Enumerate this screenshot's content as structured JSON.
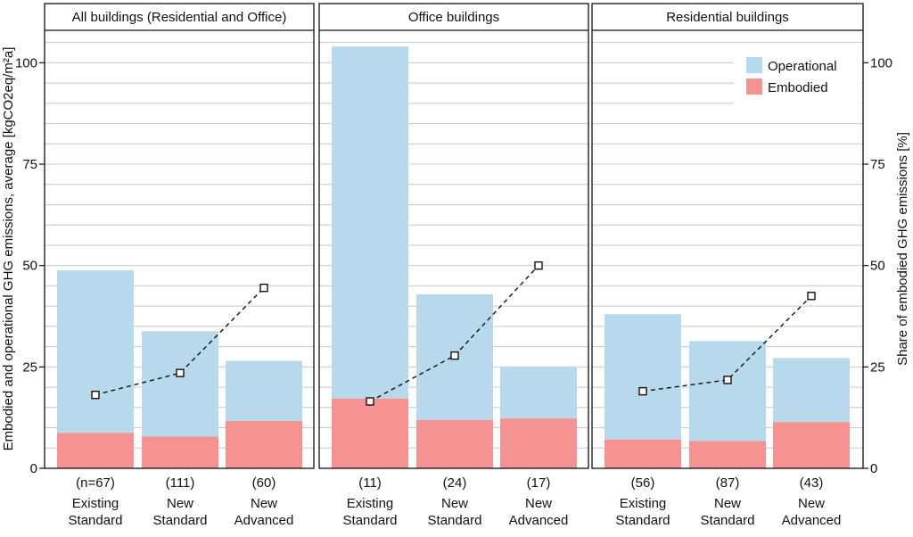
{
  "chart_data": {
    "type": "bar",
    "stacked": true,
    "ylabel_left": "Embodied and operational GHG emissions, average [kgCO2eq/m²a]",
    "ylabel_right": "Share of embodied GHG emissions [%]",
    "ylim_left": [
      0,
      108
    ],
    "ylim_right": [
      0,
      108
    ],
    "yticks": [
      0,
      25,
      50,
      75,
      100
    ],
    "grid": true,
    "legend": {
      "placement": "top-right of last panel",
      "entries": [
        {
          "name": "Operational",
          "color": "#b8d8eb"
        },
        {
          "name": "Embodied",
          "color": "#f59393"
        }
      ]
    },
    "line_series_name": "Share of embodied GHG emissions",
    "panels": [
      {
        "title": "All buildings (Residential and Office)",
        "categories": [
          {
            "n": "(n=67)",
            "line1": "Existing",
            "line2": "Standard"
          },
          {
            "n": "(111)",
            "line1": "New",
            "line2": "Standard"
          },
          {
            "n": "(60)",
            "line1": "New",
            "line2": "Advanced"
          }
        ],
        "embodied": [
          8.7,
          7.8,
          11.7
        ],
        "operational": [
          40.1,
          26.0,
          14.8
        ],
        "share_pct": [
          18.1,
          23.5,
          44.5
        ]
      },
      {
        "title": "Office buildings",
        "categories": [
          {
            "n": "(11)",
            "line1": "Existing",
            "line2": "Standard"
          },
          {
            "n": "(24)",
            "line1": "New",
            "line2": "Standard"
          },
          {
            "n": "(17)",
            "line1": "New",
            "line2": "Advanced"
          }
        ],
        "embodied": [
          17.2,
          11.9,
          12.3
        ],
        "operational": [
          86.8,
          31.0,
          12.7
        ],
        "share_pct": [
          16.5,
          27.8,
          50.0
        ]
      },
      {
        "title": "Residential buildings",
        "categories": [
          {
            "n": "(56)",
            "line1": "Existing",
            "line2": "Standard"
          },
          {
            "n": "(87)",
            "line1": "New",
            "line2": "Standard"
          },
          {
            "n": "(43)",
            "line1": "New",
            "line2": "Advanced"
          }
        ],
        "embodied": [
          7.1,
          6.7,
          11.4
        ],
        "operational": [
          30.9,
          24.7,
          15.8
        ],
        "share_pct": [
          19.0,
          21.8,
          42.5
        ]
      }
    ]
  }
}
